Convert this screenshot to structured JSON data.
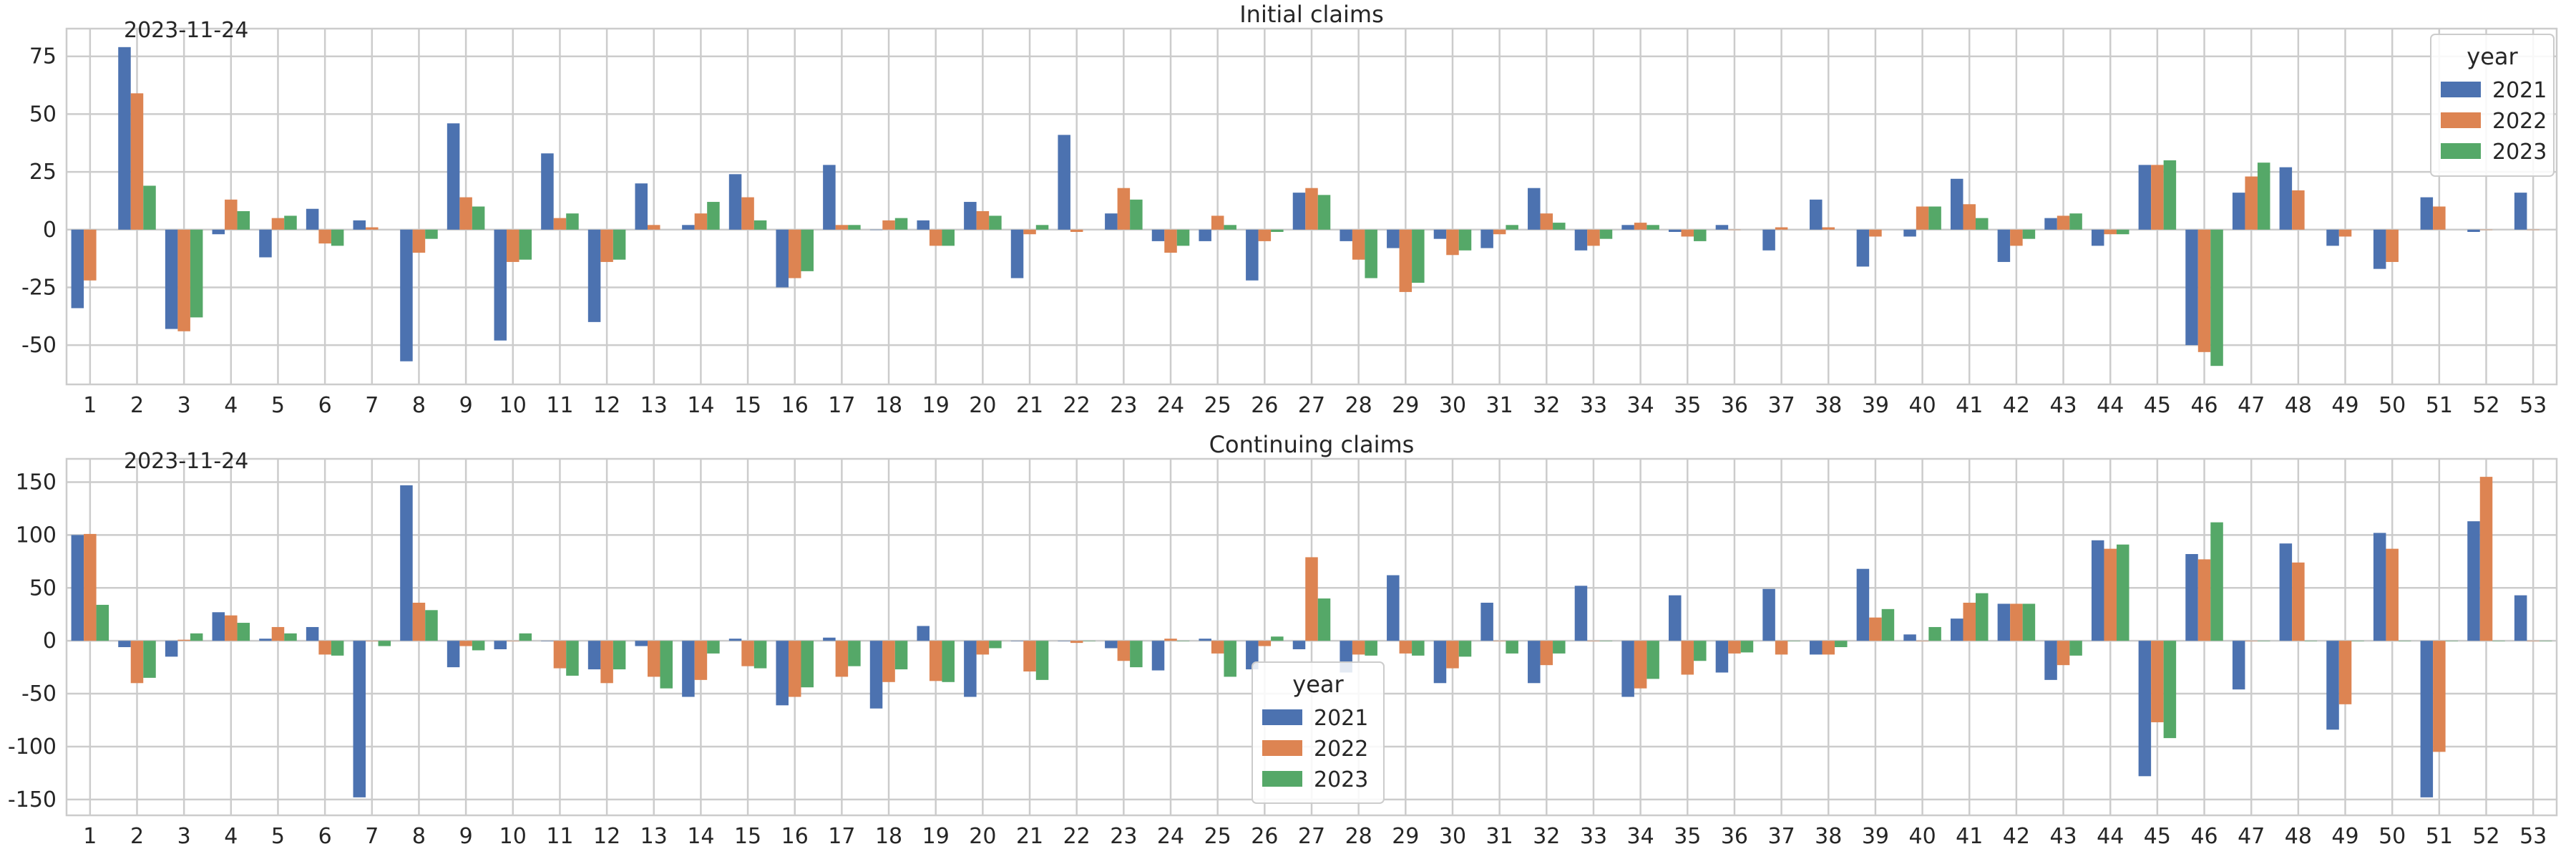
{
  "colors": {
    "2021": "#4c72b0",
    "2022": "#dd8452",
    "2023": "#55a868",
    "grid": "#cccccc",
    "text": "#262626"
  },
  "chart_data": [
    {
      "type": "bar",
      "title": "Initial claims",
      "annotation": "2023-11-24",
      "xlabel": "",
      "ylabel": "",
      "ylim": [
        -67,
        87
      ],
      "yticks": [
        -50,
        -25,
        0,
        25,
        50,
        75
      ],
      "grid": true,
      "legend": {
        "title": "year",
        "placement": "top-right"
      },
      "categories": [
        "1",
        "2",
        "3",
        "4",
        "5",
        "6",
        "7",
        "8",
        "9",
        "10",
        "11",
        "12",
        "13",
        "14",
        "15",
        "16",
        "17",
        "18",
        "19",
        "20",
        "21",
        "22",
        "23",
        "24",
        "25",
        "26",
        "27",
        "28",
        "29",
        "30",
        "31",
        "32",
        "33",
        "34",
        "35",
        "36",
        "37",
        "38",
        "39",
        "40",
        "41",
        "42",
        "43",
        "44",
        "45",
        "46",
        "47",
        "48",
        "49",
        "50",
        "51",
        "52",
        "53"
      ],
      "series": [
        {
          "name": "2021",
          "values": [
            -34,
            79,
            -43,
            -2,
            -12,
            9,
            4,
            -57,
            46,
            -48,
            33,
            -40,
            20,
            2,
            24,
            -25,
            28,
            0,
            4,
            12,
            -21,
            41,
            7,
            -5,
            -5,
            -22,
            16,
            -5,
            -8,
            -4,
            -8,
            18,
            -9,
            2,
            -1,
            2,
            -9,
            13,
            -16,
            -3,
            22,
            -14,
            5,
            -7,
            28,
            -50,
            16,
            27,
            -7,
            -17,
            14,
            -1,
            16
          ]
        },
        {
          "name": "2022",
          "values": [
            -22,
            59,
            -44,
            13,
            5,
            -6,
            1,
            -10,
            14,
            -14,
            5,
            -14,
            2,
            7,
            14,
            -21,
            2,
            4,
            -7,
            8,
            -2,
            -1,
            18,
            -10,
            6,
            -5,
            18,
            -13,
            -27,
            -11,
            -2,
            7,
            -7,
            3,
            -3,
            0,
            1,
            1,
            -3,
            10,
            11,
            -7,
            6,
            -2,
            28,
            -53,
            23,
            17,
            -3,
            -14,
            10,
            0,
            0
          ]
        },
        {
          "name": "2023",
          "values": [
            null,
            19,
            -38,
            8,
            6,
            -7,
            null,
            -4,
            10,
            -13,
            7,
            -13,
            null,
            12,
            4,
            -18,
            2,
            5,
            -7,
            6,
            2,
            null,
            13,
            -7,
            2,
            -1,
            15,
            -21,
            -23,
            -9,
            2,
            3,
            -4,
            2,
            -5,
            null,
            null,
            null,
            null,
            10,
            5,
            -4,
            7,
            -2,
            30,
            -59,
            29,
            null,
            null,
            null,
            null,
            null,
            null
          ]
        }
      ]
    },
    {
      "type": "bar",
      "title": "Continuing claims",
      "annotation": "2023-11-24",
      "xlabel": "",
      "ylabel": "",
      "ylim": [
        -165,
        172
      ],
      "yticks": [
        -150,
        -100,
        -50,
        0,
        50,
        100,
        150
      ],
      "grid": true,
      "legend": {
        "title": "year",
        "placement": "lower-center"
      },
      "categories": [
        "1",
        "2",
        "3",
        "4",
        "5",
        "6",
        "7",
        "8",
        "9",
        "10",
        "11",
        "12",
        "13",
        "14",
        "15",
        "16",
        "17",
        "18",
        "19",
        "20",
        "21",
        "22",
        "23",
        "24",
        "25",
        "26",
        "27",
        "28",
        "29",
        "30",
        "31",
        "32",
        "33",
        "34",
        "35",
        "36",
        "37",
        "38",
        "39",
        "40",
        "41",
        "42",
        "43",
        "44",
        "45",
        "46",
        "47",
        "48",
        "49",
        "50",
        "51",
        "52",
        "53"
      ],
      "series": [
        {
          "name": "2021",
          "values": [
            100,
            -6,
            -15,
            27,
            2,
            13,
            -148,
            147,
            -25,
            -8,
            0,
            -27,
            -5,
            -53,
            2,
            -61,
            3,
            -64,
            14,
            -53,
            0,
            0,
            -7,
            -28,
            2,
            -27,
            -8,
            -30,
            62,
            -40,
            36,
            -40,
            52,
            -53,
            43,
            -30,
            49,
            -13,
            68,
            6,
            21,
            35,
            -37,
            95,
            -128,
            82,
            -46,
            92,
            -84,
            102,
            -148,
            113,
            43
          ]
        },
        {
          "name": "2022",
          "values": [
            101,
            -40,
            1,
            24,
            13,
            -13,
            0,
            36,
            -5,
            0,
            -26,
            -40,
            -34,
            -37,
            -24,
            -53,
            -34,
            -39,
            -38,
            -13,
            -29,
            -2,
            -19,
            2,
            -12,
            -5,
            79,
            -13,
            -12,
            -26,
            0,
            -23,
            0,
            -45,
            -32,
            -12,
            -13,
            -13,
            22,
            0,
            36,
            35,
            -23,
            87,
            -77,
            77,
            0,
            74,
            -60,
            87,
            -105,
            155,
            0
          ]
        },
        {
          "name": "2023",
          "values": [
            34,
            -35,
            7,
            17,
            7,
            -14,
            -5,
            29,
            -9,
            7,
            -33,
            -27,
            -45,
            -12,
            -26,
            -44,
            -24,
            -27,
            -39,
            -7,
            -37,
            0,
            -25,
            0,
            -34,
            4,
            40,
            -14,
            -14,
            -15,
            -12,
            -12,
            0,
            -36,
            -19,
            -11,
            0,
            -6,
            30,
            13,
            45,
            35,
            -14,
            91,
            -92,
            112,
            0,
            0,
            0,
            0,
            0,
            0,
            0
          ]
        }
      ]
    }
  ]
}
